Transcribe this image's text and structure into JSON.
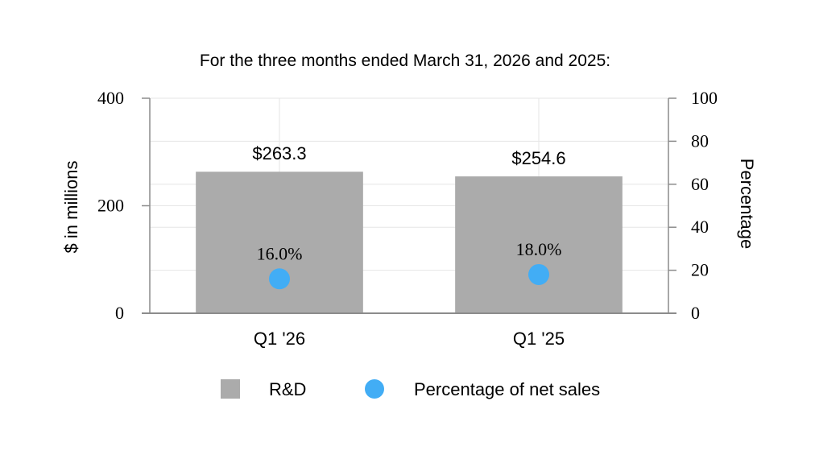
{
  "chart_data": {
    "type": "bar",
    "title": "For the three months ended March 31, 2026 and 2025:",
    "categories": [
      "Q1 '26",
      "Q1 '25"
    ],
    "series": [
      {
        "name": "R&D",
        "type": "bar",
        "axis": "left",
        "values": [
          263.3,
          254.6
        ],
        "data_labels": [
          "$263.3",
          "$254.6"
        ],
        "color": "#ababab"
      },
      {
        "name": "Percentage of net sales",
        "type": "scatter",
        "axis": "right",
        "values": [
          16.0,
          18.0
        ],
        "data_labels": [
          "16.0%",
          "18.0%"
        ],
        "color": "#42adf5"
      }
    ],
    "ylabel": "$ in millions",
    "ylim": [
      0,
      400
    ],
    "yticks": [
      "0",
      "200",
      "400"
    ],
    "y2label": "Percentage",
    "y2lim": [
      0,
      100
    ],
    "y2ticks": [
      "0",
      "20",
      "40",
      "60",
      "80",
      "100"
    ],
    "grid": true,
    "legend_position": "bottom"
  }
}
